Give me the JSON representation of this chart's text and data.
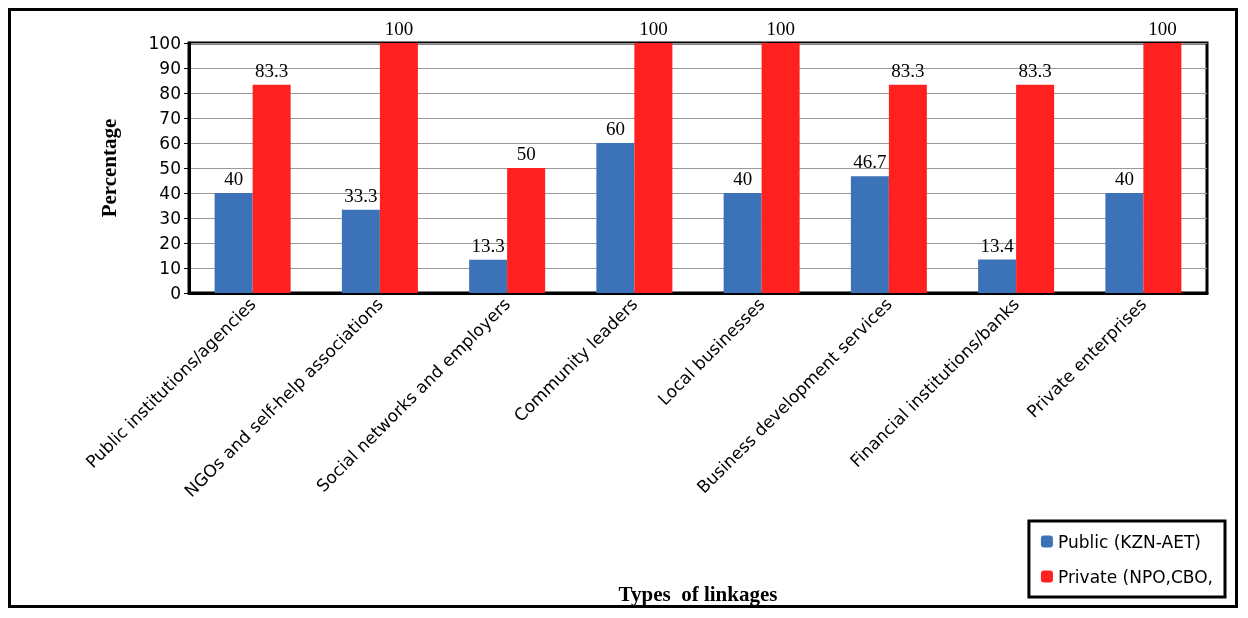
{
  "chart_data": {
    "type": "bar",
    "xlabel": "Types  of linkages",
    "ylabel": "Percentage",
    "categories": [
      "Public institutions/agencies",
      "NGOs and self-help associations",
      "Social networks and employers",
      "Community leaders",
      "Local businesses",
      "Business development services",
      "Financial institutions/banks",
      "Private enterprises"
    ],
    "series": [
      {
        "name": "Public (KZN-AET)",
        "color": "#3c72b8",
        "values": [
          40,
          33.3,
          13.3,
          60,
          40,
          46.7,
          13.4,
          40
        ]
      },
      {
        "name": "Private (NPO,CBO,",
        "color": "#ff2020",
        "values": [
          83.3,
          100,
          50,
          100,
          100,
          83.3,
          83.3,
          100
        ]
      }
    ],
    "ylim": [
      0,
      100
    ],
    "yticks": [
      0,
      10,
      20,
      30,
      40,
      50,
      60,
      70,
      80,
      90,
      100
    ],
    "grid": "y",
    "legend": "bottom right",
    "data_labels": true
  }
}
